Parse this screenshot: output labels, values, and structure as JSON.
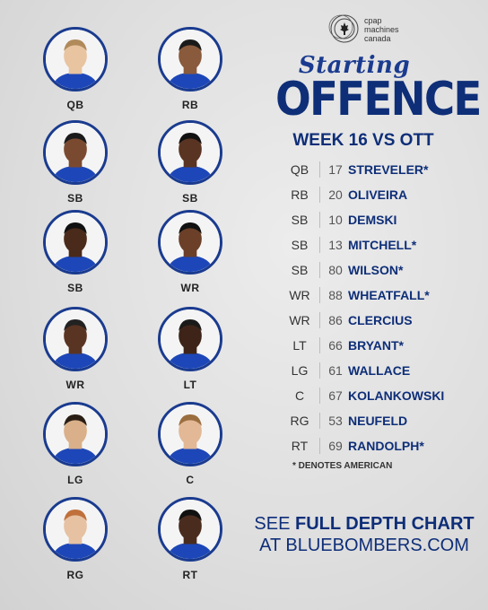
{
  "sponsor": {
    "line1": "cpap",
    "line2": "machines",
    "line3": "canada",
    "icon": "maple-leaf-circles-icon"
  },
  "title": {
    "script": "Starting",
    "main": "OFFENCE"
  },
  "subtitle": "WEEK 16 VS OTT",
  "colors": {
    "primary": "#0e2e78",
    "ring": "#1a3b8f"
  },
  "headshots": [
    {
      "pos": "QB"
    },
    {
      "pos": "RB"
    },
    {
      "pos": "SB"
    },
    {
      "pos": "SB"
    },
    {
      "pos": "SB"
    },
    {
      "pos": "WR"
    },
    {
      "pos": "WR"
    },
    {
      "pos": "LT"
    },
    {
      "pos": "LG"
    },
    {
      "pos": "C"
    },
    {
      "pos": "RG"
    },
    {
      "pos": "RT"
    }
  ],
  "roster": [
    {
      "pos": "QB",
      "num": "17",
      "name": "STREVELER*"
    },
    {
      "pos": "RB",
      "num": "20",
      "name": "OLIVEIRA"
    },
    {
      "pos": "SB",
      "num": "10",
      "name": "DEMSKI"
    },
    {
      "pos": "SB",
      "num": "13",
      "name": "MITCHELL*"
    },
    {
      "pos": "SB",
      "num": "80",
      "name": "WILSON*"
    },
    {
      "pos": "WR",
      "num": "88",
      "name": "WHEATFALL*"
    },
    {
      "pos": "WR",
      "num": "86",
      "name": "CLERCIUS"
    },
    {
      "pos": "LT",
      "num": "66",
      "name": "BRYANT*"
    },
    {
      "pos": "LG",
      "num": "61",
      "name": "WALLACE"
    },
    {
      "pos": "C",
      "num": "67",
      "name": "KOLANKOWSKI"
    },
    {
      "pos": "RG",
      "num": "53",
      "name": "NEUFELD"
    },
    {
      "pos": "RT",
      "num": "69",
      "name": "RANDOLPH*"
    }
  ],
  "footnote": "* DENOTES AMERICAN",
  "cta": {
    "see": "SEE",
    "full": "FULL DEPTH CHART",
    "at": "AT BLUEBOMBERS.COM"
  }
}
